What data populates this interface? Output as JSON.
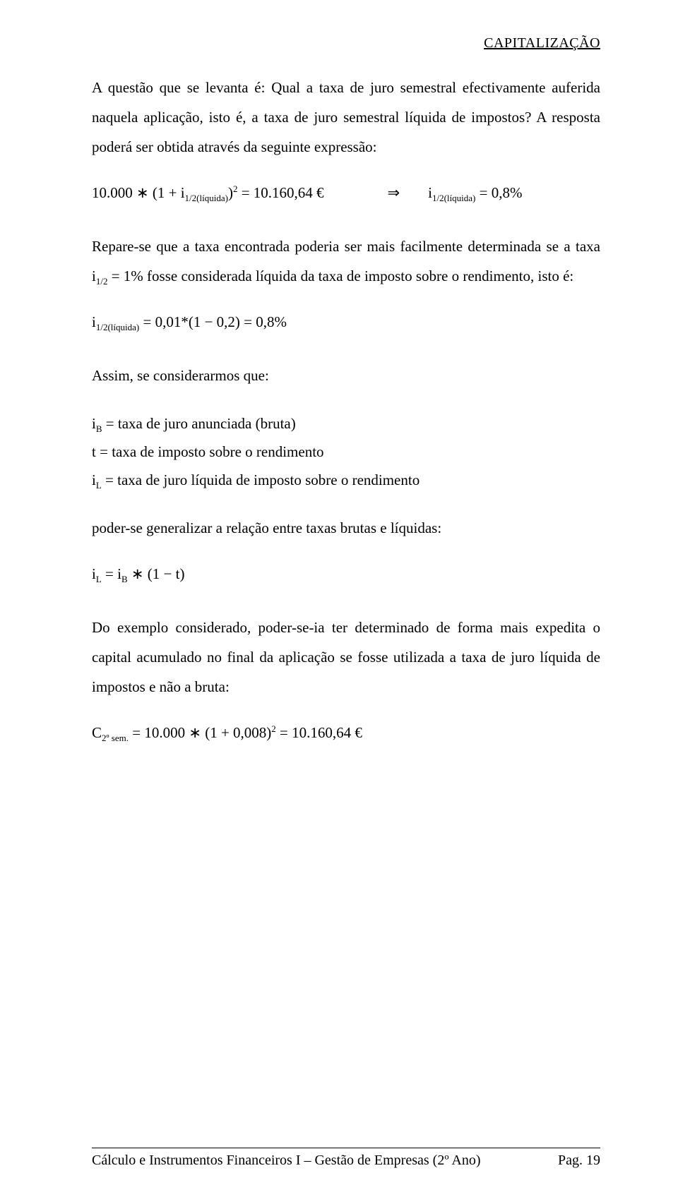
{
  "header": {
    "title": "CAPITALIZAÇÃO"
  },
  "p1": "A questão que se levanta é: Qual a taxa de juro semestral efectivamente auferida naquela aplicação, isto é, a taxa de juro semestral líquida de impostos? A resposta poderá ser obtida através da seguinte expressão:",
  "f1_lhs_a": "10.000",
  "f1_lhs_b": "(1",
  "f1_lhs_c": "i",
  "f1_lhs_sub": "1/2(líquida)",
  "f1_lhs_d": ")",
  "f1_lhs_sup": "2",
  "f1_lhs_e": "10.160,64 €",
  "f1_arrow": "⇒",
  "f1_rhs_a": "i",
  "f1_rhs_sub": "1/2(líquida)",
  "f1_rhs_b": "0,8%",
  "p2a": "Repare-se que a taxa encontrada poderia ser mais facilmente determinada se a taxa i",
  "p2sub": "1/2",
  "p2b": " = 1% fosse considerada líquida da taxa de imposto sobre o rendimento, isto é:",
  "f2_a": "i",
  "f2_sub": "1/2(líquida)",
  "f2_b": "0,01*(1",
  "f2_c": "0,2)",
  "f2_d": "0,8%",
  "p3": "Assim, se considerarmos que:",
  "def_ib_a": "i",
  "def_ib_sub": "B",
  "def_ib_b": " taxa de juro anunciada (bruta)",
  "def_t_a": "t",
  "def_t_b": " taxa de imposto sobre o rendimento",
  "def_il_a": "i",
  "def_il_sub": "L",
  "def_il_b": " taxa de juro líquida de imposto sobre o rendimento",
  "p4": "poder-se generalizar a relação entre taxas brutas e líquidas:",
  "f3_a": "i",
  "f3_sub1": "L",
  "f3_b": "i",
  "f3_sub2": "B",
  "f3_c": "(1",
  "f3_d": "t)",
  "p5": "Do exemplo considerado, poder-se-ia ter determinado de forma mais expedita o capital acumulado no final da aplicação se fosse utilizada a taxa de juro líquida de impostos e não a bruta:",
  "f4_a": "C",
  "f4_sub": "2º sem.",
  "f4_b": "10.000",
  "f4_c": "(1",
  "f4_d": "0,008)",
  "f4_sup": "2",
  "f4_e": "10.160,64 €",
  "footer": {
    "left": "Cálculo e Instrumentos Financeiros I – Gestão de Empresas (2º Ano)",
    "right": "Pag. 19"
  }
}
